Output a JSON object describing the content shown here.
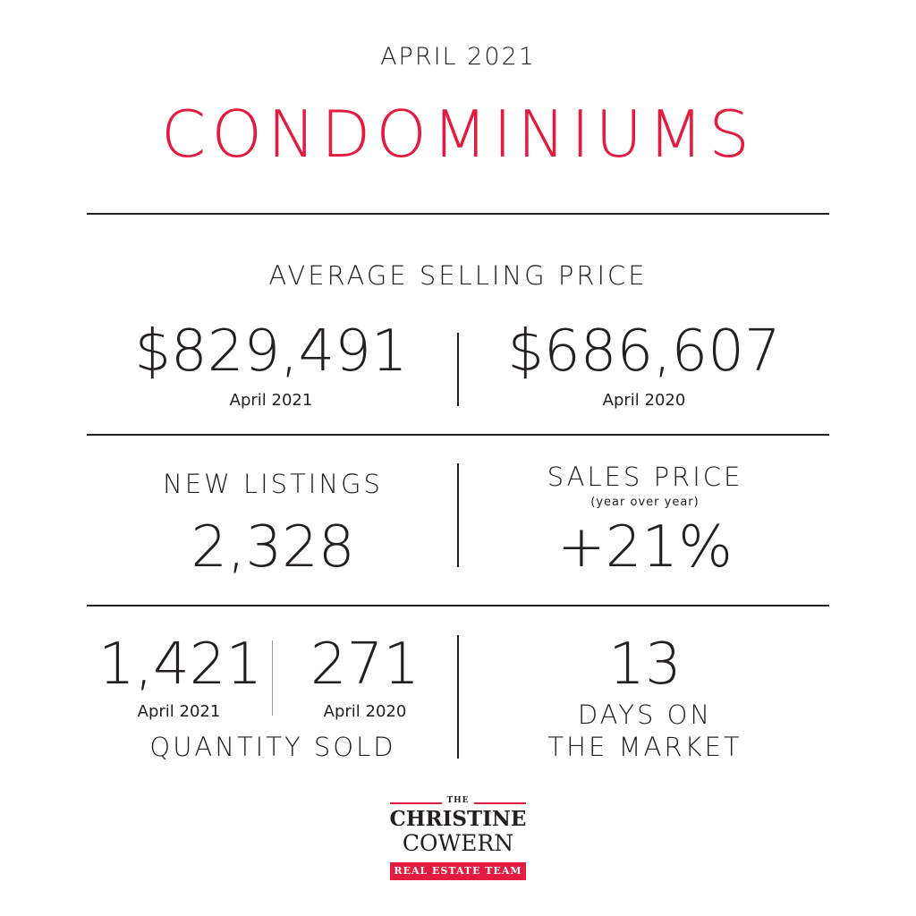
{
  "header": {
    "month": "APRIL 2021",
    "title": "CONDOMINIUMS",
    "title_color": "#e31b3f"
  },
  "avg_price": {
    "label": "AVERAGE SELLING PRICE",
    "current_value": "$829,491",
    "current_period": "April 2021",
    "previous_value": "$686,607",
    "previous_period": "April 2020"
  },
  "new_listings": {
    "label": "NEW LISTINGS",
    "value": "2,328"
  },
  "sales_price": {
    "label": "SALES PRICE",
    "sublabel": "(year over year)",
    "value": "+21%"
  },
  "quantity_sold": {
    "current_value": "1,421",
    "current_period": "April 2021",
    "previous_value": "271",
    "previous_period": "April 2020",
    "label": "QUANTITY SOLD"
  },
  "days_on_market": {
    "value": "13",
    "label_line1": "DAYS ON",
    "label_line2": "THE MARKET"
  },
  "logo": {
    "the": "THE",
    "name_line1": "CHRISTINE",
    "name_line2": "COWERN",
    "tagline": "REAL ESTATE TEAM",
    "accent_color": "#e31b3f"
  }
}
